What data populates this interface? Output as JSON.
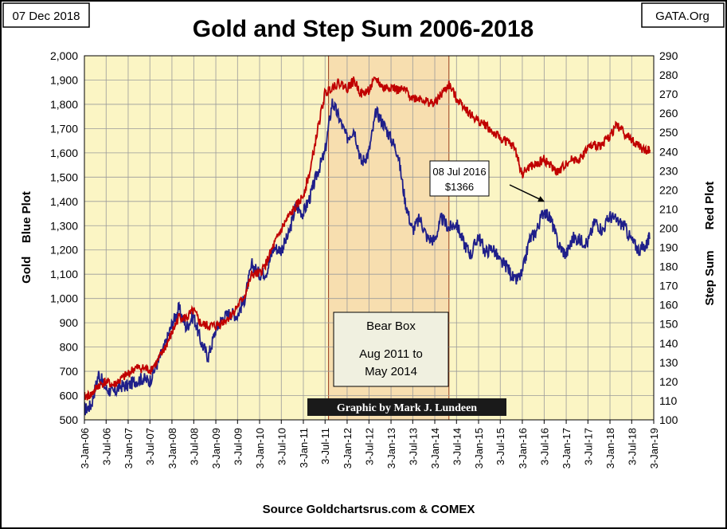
{
  "date_label": "07 Dec 2018",
  "brand_label": "GATA.Org",
  "chart_data": {
    "type": "line",
    "title": "Gold and Step Sum 2006-2018",
    "ylabel_left": "Gold    Blue Plot",
    "ylabel_right_top": "Red Plot",
    "ylabel_right_bottom": "Step Sum",
    "source": "Source Goldchartsrus.com & COMEX",
    "credit": "Graphic by Mark J. Lundeen",
    "grid": true,
    "ylim_left": [
      500,
      2000
    ],
    "ylim_right": [
      100,
      290
    ],
    "yticks_left": [
      "500",
      "600",
      "700",
      "800",
      "900",
      "1,000",
      "1,100",
      "1,200",
      "1,300",
      "1,400",
      "1,500",
      "1,600",
      "1,700",
      "1,800",
      "1,900",
      "2,000"
    ],
    "yticks_right": [
      "100",
      "110",
      "120",
      "130",
      "140",
      "150",
      "160",
      "170",
      "180",
      "190",
      "200",
      "210",
      "220",
      "230",
      "240",
      "250",
      "260",
      "270",
      "280",
      "290"
    ],
    "x_tick_labels": [
      "3-Jan-06",
      "3-Jul-06",
      "3-Jan-07",
      "3-Jul-07",
      "3-Jan-08",
      "3-Jul-08",
      "3-Jan-09",
      "3-Jul-09",
      "3-Jan-10",
      "3-Jul-10",
      "3-Jan-11",
      "3-Jul-11",
      "3-Jan-12",
      "3-Jul-12",
      "3-Jan-13",
      "3-Jul-13",
      "3-Jan-14",
      "3-Jul-14",
      "3-Jan-15",
      "3-Jul-15",
      "3-Jan-16",
      "3-Jul-16",
      "3-Jan-17",
      "3-Jul-17",
      "3-Jan-18",
      "3-Jul-18",
      "3-Jan-19"
    ],
    "bear_box": {
      "from": "2011-08",
      "to": "2014-05",
      "lines": [
        "Bear Box",
        "Aug 2011 to",
        "May 2014"
      ]
    },
    "annotation": {
      "lines": [
        "08 Jul 2016",
        "$1366"
      ],
      "x": "2016-07-08",
      "y": 1366
    },
    "series": [
      {
        "name": "Gold",
        "axis": "left",
        "color": "#1f1f8a",
        "x": [
          "2006-01",
          "2006-03",
          "2006-05",
          "2006-07",
          "2006-09",
          "2006-11",
          "2007-01",
          "2007-03",
          "2007-05",
          "2007-07",
          "2007-09",
          "2007-11",
          "2008-01",
          "2008-03",
          "2008-05",
          "2008-07",
          "2008-09",
          "2008-11",
          "2009-01",
          "2009-03",
          "2009-05",
          "2009-07",
          "2009-09",
          "2009-11",
          "2010-01",
          "2010-03",
          "2010-05",
          "2010-07",
          "2010-09",
          "2010-11",
          "2011-01",
          "2011-03",
          "2011-05",
          "2011-07",
          "2011-09",
          "2011-11",
          "2012-01",
          "2012-03",
          "2012-05",
          "2012-07",
          "2012-09",
          "2012-11",
          "2013-01",
          "2013-03",
          "2013-05",
          "2013-07",
          "2013-09",
          "2013-11",
          "2014-01",
          "2014-03",
          "2014-05",
          "2014-07",
          "2014-09",
          "2014-11",
          "2015-01",
          "2015-03",
          "2015-05",
          "2015-07",
          "2015-09",
          "2015-11",
          "2016-01",
          "2016-03",
          "2016-05",
          "2016-07",
          "2016-09",
          "2016-11",
          "2017-01",
          "2017-03",
          "2017-05",
          "2017-07",
          "2017-09",
          "2017-11",
          "2018-01",
          "2018-03",
          "2018-05",
          "2018-07",
          "2018-09",
          "2018-11",
          "2018-12"
        ],
        "values": [
          540,
          560,
          690,
          630,
          610,
          640,
          640,
          660,
          670,
          660,
          730,
          800,
          890,
          960,
          880,
          930,
          820,
          760,
          870,
          920,
          940,
          930,
          1000,
          1140,
          1100,
          1110,
          1210,
          1200,
          1260,
          1380,
          1350,
          1420,
          1520,
          1600,
          1810,
          1740,
          1660,
          1700,
          1560,
          1600,
          1770,
          1720,
          1660,
          1600,
          1400,
          1280,
          1330,
          1250,
          1240,
          1330,
          1290,
          1310,
          1230,
          1180,
          1260,
          1190,
          1210,
          1150,
          1130,
          1070,
          1100,
          1240,
          1280,
          1366,
          1320,
          1220,
          1180,
          1250,
          1240,
          1230,
          1320,
          1280,
          1340,
          1320,
          1300,
          1240,
          1200,
          1220,
          1250
        ]
      },
      {
        "name": "Step Sum",
        "axis": "right",
        "color": "#c00000",
        "x": [
          "2006-01",
          "2006-03",
          "2006-05",
          "2006-07",
          "2006-09",
          "2006-11",
          "2007-01",
          "2007-03",
          "2007-05",
          "2007-07",
          "2007-09",
          "2007-11",
          "2008-01",
          "2008-03",
          "2008-05",
          "2008-07",
          "2008-09",
          "2008-11",
          "2009-01",
          "2009-03",
          "2009-05",
          "2009-07",
          "2009-09",
          "2009-11",
          "2010-01",
          "2010-03",
          "2010-05",
          "2010-07",
          "2010-09",
          "2010-11",
          "2011-01",
          "2011-03",
          "2011-05",
          "2011-07",
          "2011-09",
          "2011-11",
          "2012-01",
          "2012-03",
          "2012-05",
          "2012-07",
          "2012-09",
          "2012-11",
          "2013-01",
          "2013-03",
          "2013-05",
          "2013-07",
          "2013-09",
          "2013-11",
          "2014-01",
          "2014-03",
          "2014-05",
          "2014-07",
          "2014-09",
          "2014-11",
          "2015-01",
          "2015-03",
          "2015-05",
          "2015-07",
          "2015-09",
          "2015-11",
          "2016-01",
          "2016-03",
          "2016-05",
          "2016-07",
          "2016-09",
          "2016-11",
          "2017-01",
          "2017-03",
          "2017-05",
          "2017-07",
          "2017-09",
          "2017-11",
          "2018-01",
          "2018-03",
          "2018-05",
          "2018-07",
          "2018-09",
          "2018-11",
          "2018-12"
        ],
        "values": [
          112,
          113,
          118,
          120,
          118,
          121,
          124,
          127,
          127,
          126,
          130,
          137,
          145,
          154,
          153,
          157,
          150,
          149,
          149,
          151,
          154,
          159,
          165,
          176,
          176,
          182,
          191,
          199,
          206,
          211,
          217,
          230,
          251,
          270,
          274,
          276,
          273,
          277,
          270,
          272,
          278,
          273,
          274,
          272,
          272,
          268,
          268,
          266,
          265,
          270,
          275,
          268,
          264,
          259,
          256,
          254,
          250,
          247,
          245,
          242,
          228,
          232,
          233,
          236,
          232,
          229,
          234,
          236,
          236,
          242,
          243,
          244,
          248,
          254,
          250,
          246,
          243,
          240,
          241
        ]
      }
    ]
  }
}
